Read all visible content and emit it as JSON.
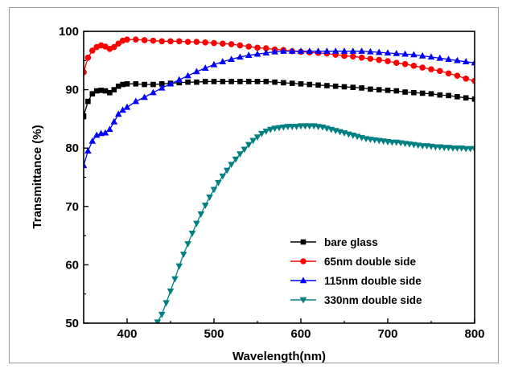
{
  "chart_data": {
    "type": "line",
    "xlabel": "Wavelength(nm)",
    "ylabel": "Transmittance (%)",
    "xlim": [
      350,
      800
    ],
    "ylim": [
      50,
      100
    ],
    "xticks": [
      400,
      500,
      600,
      700,
      800
    ],
    "yticks": [
      50,
      60,
      70,
      80,
      90,
      100
    ],
    "legend_position": "bottom-right",
    "series": [
      {
        "name": "bare glass",
        "color": "#000000",
        "marker": "square",
        "x": [
          350,
          355,
          360,
          365,
          370,
          375,
          380,
          385,
          390,
          395,
          400,
          410,
          420,
          430,
          440,
          450,
          460,
          470,
          480,
          490,
          500,
          510,
          520,
          530,
          540,
          550,
          560,
          570,
          580,
          590,
          600,
          610,
          620,
          630,
          640,
          650,
          660,
          670,
          680,
          690,
          700,
          710,
          720,
          730,
          740,
          750,
          760,
          770,
          780,
          790,
          800
        ],
        "y": [
          85.5,
          88.0,
          89.3,
          89.8,
          89.9,
          89.8,
          89.5,
          90.0,
          90.6,
          90.9,
          91.0,
          91.0,
          90.9,
          90.9,
          91.0,
          91.1,
          91.2,
          91.3,
          91.3,
          91.4,
          91.4,
          91.4,
          91.4,
          91.4,
          91.4,
          91.4,
          91.4,
          91.3,
          91.2,
          91.1,
          91.0,
          90.9,
          90.8,
          90.7,
          90.6,
          90.5,
          90.4,
          90.3,
          90.1,
          90.0,
          89.9,
          89.8,
          89.6,
          89.5,
          89.4,
          89.3,
          89.1,
          89.0,
          88.8,
          88.6,
          88.4
        ]
      },
      {
        "name": "65nm double side",
        "color": "#ff0000",
        "marker": "circle",
        "x": [
          350,
          355,
          360,
          365,
          370,
          375,
          380,
          385,
          390,
          395,
          400,
          410,
          420,
          430,
          440,
          450,
          460,
          470,
          480,
          490,
          500,
          510,
          520,
          530,
          540,
          550,
          560,
          570,
          580,
          590,
          600,
          610,
          620,
          630,
          640,
          650,
          660,
          670,
          680,
          690,
          700,
          710,
          720,
          730,
          740,
          750,
          760,
          770,
          780,
          790,
          800
        ],
        "y": [
          93.0,
          95.5,
          96.7,
          97.3,
          97.6,
          97.4,
          97.0,
          97.3,
          97.9,
          98.4,
          98.6,
          98.6,
          98.5,
          98.4,
          98.3,
          98.3,
          98.3,
          98.2,
          98.2,
          98.1,
          98.0,
          97.9,
          97.8,
          97.6,
          97.4,
          97.2,
          97.1,
          96.9,
          96.8,
          96.6,
          96.5,
          96.4,
          96.3,
          96.2,
          96.0,
          95.8,
          95.7,
          95.5,
          95.3,
          95.1,
          94.9,
          94.6,
          94.4,
          94.1,
          93.8,
          93.5,
          93.2,
          92.8,
          92.4,
          91.9,
          91.5
        ]
      },
      {
        "name": "115nm double side",
        "color": "#0000ff",
        "marker": "triangle-up",
        "x": [
          350,
          355,
          360,
          365,
          370,
          375,
          380,
          385,
          390,
          395,
          400,
          410,
          420,
          430,
          440,
          450,
          460,
          470,
          480,
          490,
          500,
          510,
          520,
          530,
          540,
          550,
          560,
          570,
          580,
          590,
          600,
          610,
          620,
          630,
          640,
          650,
          660,
          670,
          680,
          690,
          700,
          710,
          720,
          730,
          740,
          750,
          760,
          770,
          780,
          790,
          800
        ],
        "y": [
          77.0,
          79.5,
          81.2,
          82.2,
          82.5,
          82.6,
          83.2,
          84.5,
          85.8,
          86.5,
          87.0,
          88.0,
          88.7,
          89.5,
          90.3,
          91.0,
          91.7,
          92.4,
          93.1,
          93.7,
          94.3,
          94.8,
          95.2,
          95.6,
          95.9,
          96.1,
          96.3,
          96.5,
          96.6,
          96.6,
          96.6,
          96.6,
          96.6,
          96.6,
          96.6,
          96.6,
          96.6,
          96.6,
          96.5,
          96.4,
          96.3,
          96.2,
          96.1,
          96.0,
          95.8,
          95.6,
          95.4,
          95.2,
          95.0,
          94.8,
          94.6
        ]
      },
      {
        "name": "330nm double side",
        "color": "#008080",
        "marker": "triangle-down",
        "x": [
          435,
          440,
          445,
          450,
          455,
          460,
          465,
          470,
          475,
          480,
          485,
          490,
          495,
          500,
          505,
          510,
          515,
          520,
          525,
          530,
          535,
          540,
          545,
          550,
          555,
          560,
          565,
          570,
          575,
          580,
          585,
          590,
          595,
          600,
          605,
          610,
          615,
          620,
          625,
          630,
          635,
          640,
          645,
          650,
          655,
          660,
          665,
          670,
          675,
          680,
          685,
          690,
          695,
          700,
          705,
          710,
          715,
          720,
          725,
          730,
          735,
          740,
          745,
          750,
          755,
          760,
          765,
          770,
          775,
          780,
          785,
          790,
          795,
          800
        ],
        "y": [
          50.2,
          51.5,
          53.5,
          55.5,
          57.6,
          59.8,
          61.8,
          63.6,
          65.4,
          67.1,
          68.7,
          70.2,
          71.6,
          72.9,
          74.1,
          75.2,
          76.2,
          77.2,
          78.1,
          79.0,
          79.8,
          80.6,
          81.3,
          81.9,
          82.5,
          82.9,
          83.2,
          83.4,
          83.5,
          83.6,
          83.7,
          83.7,
          83.7,
          83.8,
          83.8,
          83.8,
          83.8,
          83.7,
          83.6,
          83.4,
          83.2,
          83.0,
          82.8,
          82.6,
          82.4,
          82.2,
          82.0,
          81.8,
          81.6,
          81.5,
          81.4,
          81.3,
          81.2,
          81.1,
          81.0,
          81.0,
          80.9,
          80.8,
          80.7,
          80.6,
          80.5,
          80.4,
          80.4,
          80.3,
          80.2,
          80.2,
          80.1,
          80.1,
          80.0,
          80.0,
          80.0,
          79.9,
          79.9,
          79.9
        ]
      }
    ]
  }
}
